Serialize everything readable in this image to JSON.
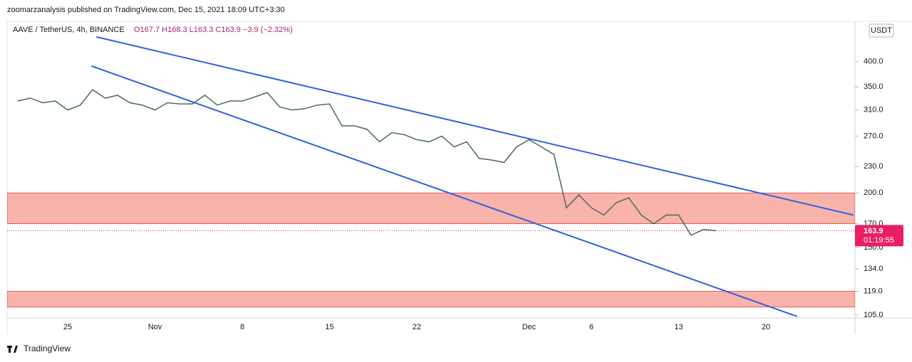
{
  "header": {
    "published": "zoomarzanalysis published on TradingView.com, Dec 15, 2021 18:09 UTC+3:30",
    "symbol": "AAVE / TetherUS, 4h, BINANCE",
    "ohlc": "O167.7 H168.3 L163.3 C163.9 −3.9 (−2.32%)",
    "currency": "USDT"
  },
  "footer": "TradingView",
  "chart_data": {
    "type": "line",
    "color": "#4a6b5c",
    "log_scale": true,
    "categories": [
      null,
      null,
      null,
      null,
      "25",
      null,
      null,
      null,
      null,
      null,
      null,
      "Nov",
      null,
      null,
      null,
      null,
      null,
      null,
      "8",
      null,
      null,
      null,
      null,
      null,
      null,
      "15",
      null,
      null,
      null,
      null,
      null,
      null,
      "22",
      null,
      null,
      null,
      null,
      null,
      null,
      null,
      null,
      "Dec",
      null,
      null,
      null,
      null,
      "6",
      null,
      null,
      null,
      null,
      null,
      null,
      "13",
      null,
      null,
      null,
      null,
      null,
      null,
      "20",
      null,
      null,
      null,
      null,
      null,
      null,
      null
    ],
    "values": [
      325,
      330,
      322,
      325,
      310,
      318,
      345,
      330,
      335,
      322,
      318,
      310,
      322,
      320,
      320,
      335,
      318,
      325,
      325,
      332,
      340,
      315,
      310,
      312,
      318,
      320,
      285,
      285,
      280,
      262,
      275,
      272,
      265,
      262,
      270,
      255,
      262,
      240,
      238,
      235,
      255,
      265,
      255,
      245,
      185,
      198,
      185,
      178,
      190,
      195,
      178,
      170,
      178,
      178,
      160,
      165,
      163.9,
      null,
      null,
      null,
      null,
      null,
      null,
      null,
      null,
      null,
      null,
      null
    ],
    "ylim": [
      103.4,
      495
    ],
    "yticks": [
      {
        "value": 400,
        "label": "400.0"
      },
      {
        "value": 350,
        "label": "350.0"
      },
      {
        "value": 310,
        "label": "310.0"
      },
      {
        "value": 270,
        "label": "270.0"
      },
      {
        "value": 230,
        "label": "230.0"
      },
      {
        "value": 200,
        "label": "200.0"
      },
      {
        "value": 170,
        "label": "170.0"
      },
      {
        "value": 150,
        "label": "150.0"
      },
      {
        "value": 134,
        "label": "134.0"
      },
      {
        "value": 119,
        "label": "119.0"
      },
      {
        "value": 105,
        "label": "105.0"
      }
    ],
    "zones": [
      {
        "from": 170,
        "to": 200,
        "color": "#f8b3ab"
      },
      {
        "from": 109.5,
        "to": 119,
        "color": "#f8b3ab"
      }
    ],
    "trendlines": [
      {
        "x": [
          6.3,
          67
        ],
        "y": [
          456,
          178
        ],
        "color": "#2f62e0"
      },
      {
        "x": [
          5.9,
          62.5
        ],
        "y": [
          391,
          104.2
        ],
        "color": "#2f62e0"
      }
    ],
    "last_price": 163.9,
    "countdown": "01:19:55",
    "last_color": "#e91e63"
  }
}
